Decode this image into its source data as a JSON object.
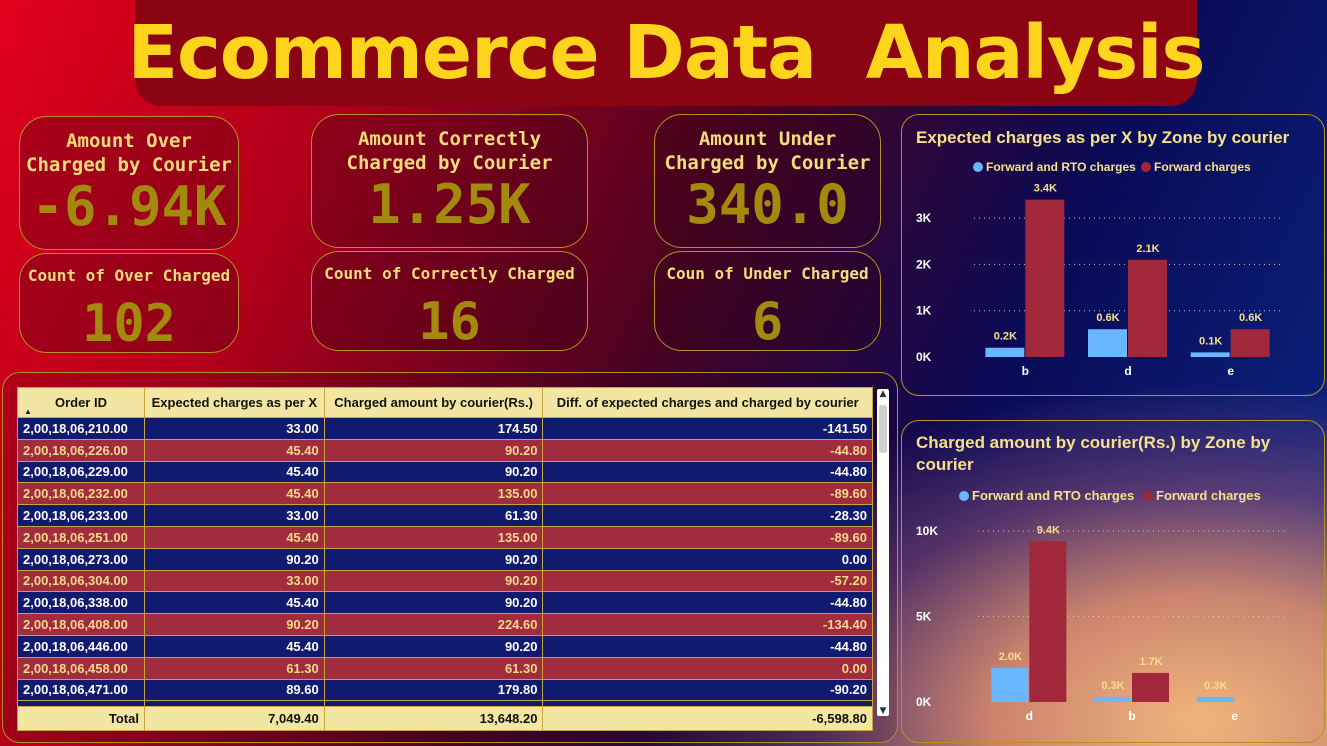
{
  "header": {
    "title": "Ecommerce Data  Analysis"
  },
  "kpis": {
    "over_amount": {
      "label": "Amount Over\nCharged by Courier",
      "value": "-6.94K"
    },
    "correct_amount": {
      "label": "Amount Correctly\nCharged by Courier",
      "value": "1.25K"
    },
    "under_amount": {
      "label": "Amount Under\nCharged by Courier",
      "value": "340.0"
    },
    "over_count": {
      "label": "Count of Over Charged",
      "value": "102"
    },
    "correct_count": {
      "label": "Count of Correctly Charged",
      "value": "16"
    },
    "under_count": {
      "label": "Coun of Under Charged",
      "value": "6"
    }
  },
  "table": {
    "headers": [
      "Order ID",
      "Expected charges as per X",
      "Charged amount by courier(Rs.)",
      "Diff. of expected charges and charged by courier"
    ],
    "rows": [
      [
        "2,00,18,06,210.00",
        "33.00",
        "174.50",
        "-141.50"
      ],
      [
        "2,00,18,06,226.00",
        "45.40",
        "90.20",
        "-44.80"
      ],
      [
        "2,00,18,06,229.00",
        "45.40",
        "90.20",
        "-44.80"
      ],
      [
        "2,00,18,06,232.00",
        "45.40",
        "135.00",
        "-89.60"
      ],
      [
        "2,00,18,06,233.00",
        "33.00",
        "61.30",
        "-28.30"
      ],
      [
        "2,00,18,06,251.00",
        "45.40",
        "135.00",
        "-89.60"
      ],
      [
        "2,00,18,06,273.00",
        "90.20",
        "90.20",
        "0.00"
      ],
      [
        "2,00,18,06,304.00",
        "33.00",
        "90.20",
        "-57.20"
      ],
      [
        "2,00,18,06,338.00",
        "45.40",
        "90.20",
        "-44.80"
      ],
      [
        "2,00,18,06,408.00",
        "90.20",
        "224.60",
        "-134.40"
      ],
      [
        "2,00,18,06,446.00",
        "45.40",
        "90.20",
        "-44.80"
      ],
      [
        "2,00,18,06,458.00",
        "61.30",
        "61.30",
        "0.00"
      ],
      [
        "2,00,18,06,471.00",
        "89.60",
        "179.80",
        "-90.20"
      ]
    ],
    "total": [
      "Total",
      "7,049.40",
      "13,648.20",
      "-6,598.80"
    ]
  },
  "chart_data": [
    {
      "type": "bar",
      "title": "Expected charges as per X by Zone by courier",
      "categories": [
        "b",
        "d",
        "e"
      ],
      "series": [
        {
          "name": "Forward and RTO charges",
          "values": [
            200,
            600,
            100
          ],
          "labels": [
            "0.2K",
            "0.6K",
            "0.1K"
          ],
          "color": "#6ab6ff"
        },
        {
          "name": "Forward charges",
          "values": [
            3400,
            2100,
            600
          ],
          "labels": [
            "3.4K",
            "2.1K",
            "0.6K"
          ],
          "color": "#a0283a"
        }
      ],
      "yticks": [
        0,
        1000,
        2000,
        3000
      ],
      "ytick_labels": [
        "0K",
        "1K",
        "2K",
        "3K"
      ],
      "ylim": [
        0,
        3500
      ],
      "legend": "top"
    },
    {
      "type": "bar",
      "title": "Charged amount by courier(Rs.) by Zone by courier",
      "categories": [
        "d",
        "b",
        "e"
      ],
      "series": [
        {
          "name": "Forward and RTO charges",
          "values": [
            2000,
            300,
            300
          ],
          "labels": [
            "2.0K",
            "0.3K",
            "0.3K"
          ],
          "color": "#6ab6ff"
        },
        {
          "name": "Forward charges",
          "values": [
            9400,
            1700,
            0
          ],
          "labels": [
            "9.4K",
            "1.7K",
            ""
          ],
          "color": "#a0283a"
        }
      ],
      "yticks": [
        0,
        5000,
        10000
      ],
      "ytick_labels": [
        "0K",
        "5K",
        "10K"
      ],
      "ylim": [
        0,
        10000
      ],
      "legend": "top"
    }
  ],
  "colors": {
    "accent_yellow": "#ffd41c",
    "row_blue": "#101a6e",
    "row_red": "#a02c3e",
    "header_cream": "#f3e6a3"
  }
}
